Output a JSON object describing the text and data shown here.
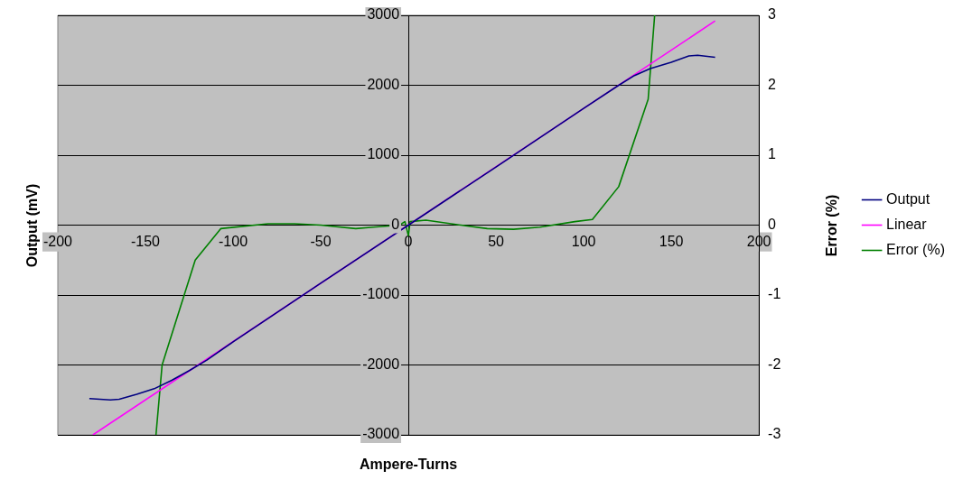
{
  "chart_data": {
    "type": "line",
    "xlabel": "Ampere-Turns",
    "ylabel": "Output (mV)",
    "y2label": "Error (%)",
    "xlim": [
      -200,
      200
    ],
    "xticks": [
      -200,
      -150,
      -100,
      -50,
      0,
      50,
      100,
      150,
      200
    ],
    "ylim": [
      -3000,
      3000
    ],
    "yticks": [
      -3000,
      -2000,
      -1000,
      0,
      1000,
      2000,
      3000
    ],
    "y2lim": [
      -3,
      3
    ],
    "y2ticks": [
      -3,
      -2,
      -1,
      0,
      1,
      2,
      3
    ],
    "grid": "y",
    "legend": "right",
    "marker": "none",
    "line_style": "solid",
    "series": [
      {
        "name": "Output",
        "color": "#000080",
        "x": [
          -182,
          -170,
          -165,
          -155,
          -145,
          -135,
          -125,
          -115,
          -100,
          -50,
          0,
          50,
          100,
          120,
          129,
          138,
          150,
          160,
          165,
          175
        ],
        "values": [
          -2480,
          -2500,
          -2490,
          -2420,
          -2340,
          -2220,
          -2080,
          -1930,
          -1670,
          -830,
          0,
          830,
          1670,
          2000,
          2140,
          2240,
          2330,
          2420,
          2430,
          2400
        ]
      },
      {
        "name": "Linear",
        "color": "#ff00ff",
        "x": [
          -180,
          175
        ],
        "values": [
          -3000,
          2920
        ]
      },
      {
        "name": "Error (%)",
        "color": "#008000",
        "axis": "y2",
        "x": [
          -144,
          -140.5,
          -121.6,
          -107,
          -80,
          -65,
          -50,
          -30,
          -20,
          -5,
          -2,
          0,
          1,
          10,
          30,
          45,
          60,
          75,
          95,
          105,
          120,
          136.8,
          140.5
        ],
        "values": [
          -3,
          -2,
          -0.5,
          -0.05,
          0.02,
          0.02,
          0,
          -0.05,
          -0.03,
          0,
          0.05,
          -0.15,
          0.05,
          0.07,
          0,
          -0.05,
          -0.06,
          -0.03,
          0.05,
          0.08,
          0.55,
          1.8,
          3
        ]
      }
    ]
  }
}
